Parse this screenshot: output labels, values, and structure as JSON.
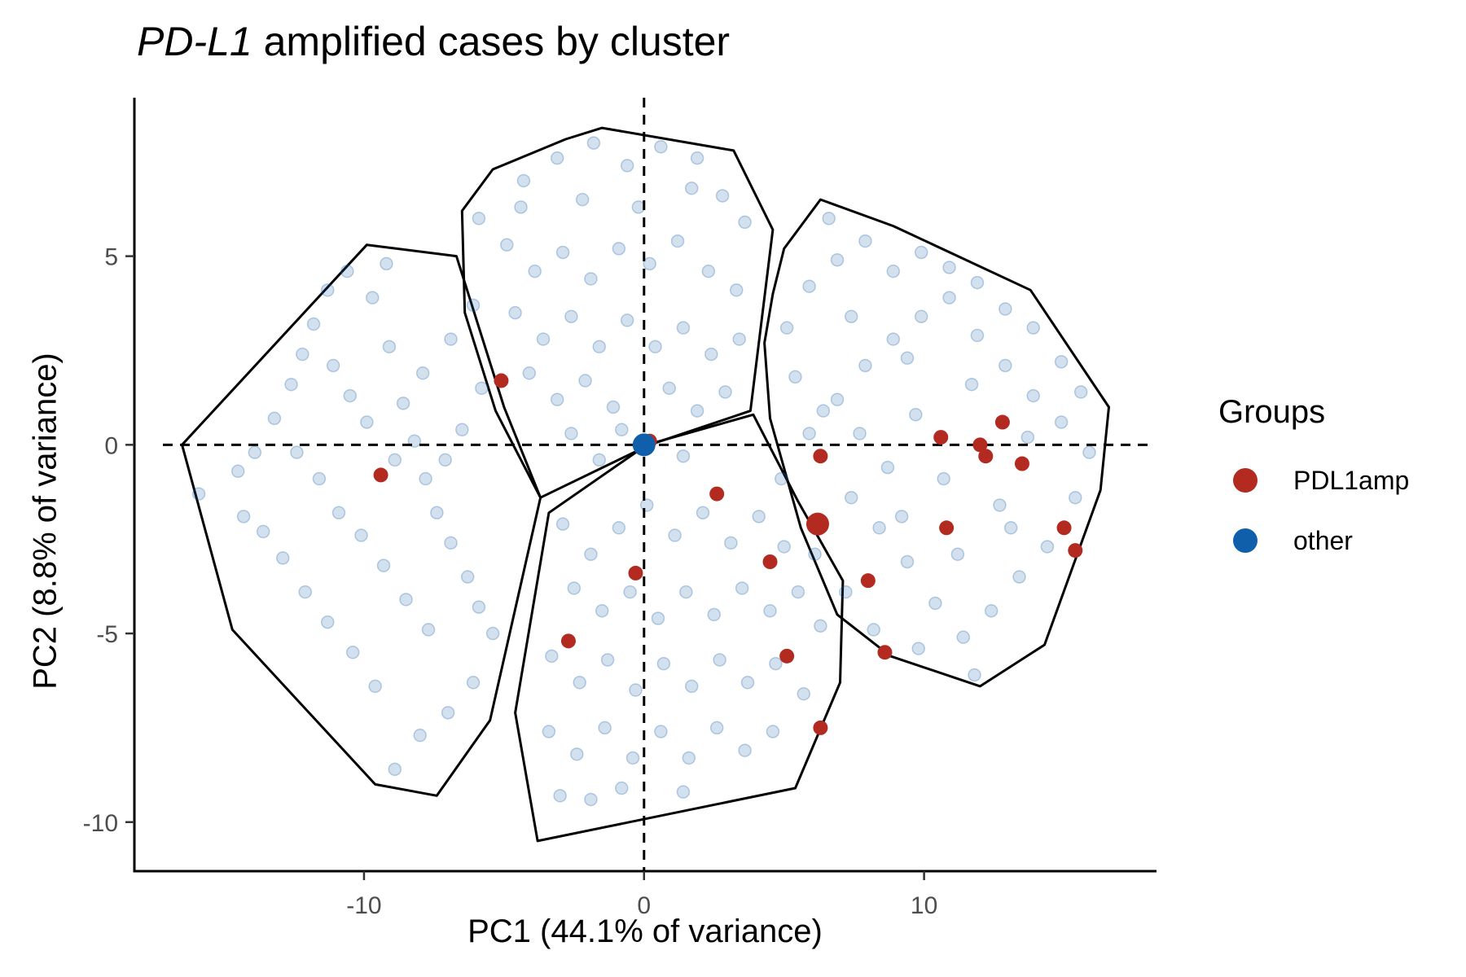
{
  "title": {
    "italic": "PD-L1",
    "rest": " amplified cases by cluster"
  },
  "chart_data": {
    "type": "scatter",
    "title": "PD-L1 amplified cases by cluster",
    "xlabel": "PC1 (44.1% of variance)",
    "ylabel": "PC2 (8.8% of variance)",
    "xlim": [
      -18.2,
      18.3
    ],
    "ylim": [
      -11.3,
      9.2
    ],
    "xticks": [
      -10,
      0,
      10
    ],
    "xtick_labels": [
      "-10",
      "0",
      "10"
    ],
    "yticks": [
      -10,
      -5,
      0,
      5
    ],
    "ytick_labels": [
      "-10",
      "-5",
      "0",
      "5"
    ],
    "reference_lines": {
      "vertical_x": 0,
      "horizontal_y": 0,
      "style": "dashed"
    },
    "grid": false,
    "legend": {
      "title": "Groups",
      "placement": "right",
      "entries": [
        {
          "label": "PDL1amp",
          "color": "#B22A20"
        },
        {
          "label": "other",
          "color": "#0F5FAA"
        }
      ]
    },
    "cluster_hulls": [
      [
        [
          -16.5,
          0.0
        ],
        [
          -9.9,
          5.3
        ],
        [
          -6.7,
          5.0
        ],
        [
          -5.0,
          1.0
        ],
        [
          -3.7,
          -1.4
        ],
        [
          -5.5,
          -7.3
        ],
        [
          -7.4,
          -9.3
        ],
        [
          -9.6,
          -9.0
        ],
        [
          -14.7,
          -4.9
        ]
      ],
      [
        [
          -6.5,
          6.2
        ],
        [
          -5.4,
          7.3
        ],
        [
          -2.8,
          8.1
        ],
        [
          -1.5,
          8.4
        ],
        [
          3.2,
          7.8
        ],
        [
          4.6,
          5.7
        ],
        [
          3.8,
          0.9
        ],
        [
          0.2,
          0.0
        ],
        [
          -3.7,
          -1.4
        ],
        [
          -5.3,
          0.9
        ],
        [
          -6.4,
          3.5
        ]
      ],
      [
        [
          -3.4,
          -1.8
        ],
        [
          0.1,
          0.0
        ],
        [
          3.9,
          0.8
        ],
        [
          5.5,
          -1.5
        ],
        [
          7.1,
          -3.6
        ],
        [
          7.0,
          -6.3
        ],
        [
          5.4,
          -9.1
        ],
        [
          -3.8,
          -10.5
        ],
        [
          -4.6,
          -7.1
        ]
      ],
      [
        [
          6.3,
          6.5
        ],
        [
          8.9,
          5.8
        ],
        [
          13.8,
          4.1
        ],
        [
          16.6,
          1.0
        ],
        [
          16.3,
          -1.2
        ],
        [
          14.3,
          -5.3
        ],
        [
          12.0,
          -6.4
        ],
        [
          8.8,
          -5.6
        ],
        [
          6.9,
          -4.5
        ],
        [
          5.6,
          -2.2
        ],
        [
          4.5,
          0.7
        ],
        [
          4.3,
          2.7
        ],
        [
          4.6,
          4.0
        ],
        [
          5.0,
          5.2
        ]
      ]
    ],
    "series": [
      {
        "name": "PDL1amp",
        "color": "#B22A20",
        "points": [
          [
            -5.1,
            1.7
          ],
          [
            -9.4,
            -0.8
          ],
          [
            0.2,
            0.1
          ],
          [
            2.6,
            -1.3
          ],
          [
            6.3,
            -0.3
          ],
          [
            6.2,
            -2.1
          ],
          [
            4.5,
            -3.1
          ],
          [
            8.0,
            -3.6
          ],
          [
            8.6,
            -5.5
          ],
          [
            5.1,
            -5.6
          ],
          [
            6.3,
            -7.5
          ],
          [
            -0.3,
            -3.4
          ],
          [
            -2.7,
            -5.2
          ],
          [
            10.6,
            0.2
          ],
          [
            12.8,
            0.6
          ],
          [
            12.0,
            0.0
          ],
          [
            12.2,
            -0.3
          ],
          [
            13.5,
            -0.5
          ],
          [
            10.8,
            -2.2
          ],
          [
            15.0,
            -2.2
          ],
          [
            15.4,
            -2.8
          ]
        ]
      },
      {
        "name": "other",
        "color": "#0F5FAA",
        "points": [
          [
            0.0,
            0.0
          ]
        ]
      }
    ],
    "background_points": {
      "note": "",
      "points": [
        [
          -15.9,
          -1.3
        ],
        [
          -14.5,
          -0.7
        ],
        [
          -13.9,
          -0.2
        ],
        [
          -13.2,
          0.7
        ],
        [
          -12.6,
          1.6
        ],
        [
          -12.2,
          2.4
        ],
        [
          -11.8,
          3.2
        ],
        [
          -11.3,
          4.1
        ],
        [
          -10.6,
          4.6
        ],
        [
          -9.7,
          3.9
        ],
        [
          -9.1,
          2.6
        ],
        [
          -8.6,
          1.1
        ],
        [
          -8.2,
          0.1
        ],
        [
          -7.8,
          -0.9
        ],
        [
          -7.4,
          -1.8
        ],
        [
          -6.9,
          -2.6
        ],
        [
          -6.3,
          -3.5
        ],
        [
          -5.9,
          -4.3
        ],
        [
          -5.4,
          -5.0
        ],
        [
          -6.1,
          -6.3
        ],
        [
          -7.0,
          -7.1
        ],
        [
          -8.0,
          -7.7
        ],
        [
          -8.9,
          -8.6
        ],
        [
          -9.6,
          -6.4
        ],
        [
          -10.4,
          -5.5
        ],
        [
          -11.3,
          -4.7
        ],
        [
          -12.1,
          -3.9
        ],
        [
          -12.9,
          -3.0
        ],
        [
          -13.6,
          -2.3
        ],
        [
          -14.3,
          -1.9
        ],
        [
          -11.6,
          -0.9
        ],
        [
          -10.9,
          -1.8
        ],
        [
          -10.1,
          -2.4
        ],
        [
          -9.3,
          -3.2
        ],
        [
          -8.5,
          -4.1
        ],
        [
          -7.7,
          -4.9
        ],
        [
          -10.5,
          1.3
        ],
        [
          -9.9,
          0.6
        ],
        [
          -8.9,
          -0.4
        ],
        [
          -7.9,
          1.9
        ],
        [
          -6.9,
          2.8
        ],
        [
          -6.1,
          3.7
        ],
        [
          -5.8,
          1.5
        ],
        [
          -6.5,
          0.4
        ],
        [
          -7.1,
          -0.4
        ],
        [
          -12.4,
          -0.2
        ],
        [
          -11.1,
          2.1
        ],
        [
          -9.2,
          4.8
        ],
        [
          -5.9,
          6.0
        ],
        [
          -4.3,
          7.0
        ],
        [
          -3.1,
          7.6
        ],
        [
          -1.8,
          8.0
        ],
        [
          -0.6,
          7.4
        ],
        [
          0.6,
          7.9
        ],
        [
          1.9,
          7.6
        ],
        [
          2.8,
          6.6
        ],
        [
          3.6,
          5.9
        ],
        [
          -4.9,
          5.3
        ],
        [
          -3.9,
          4.6
        ],
        [
          -2.9,
          5.1
        ],
        [
          -1.9,
          4.4
        ],
        [
          -0.9,
          5.2
        ],
        [
          0.2,
          4.8
        ],
        [
          1.2,
          5.4
        ],
        [
          2.3,
          4.6
        ],
        [
          3.3,
          4.1
        ],
        [
          -4.6,
          3.5
        ],
        [
          -3.6,
          2.8
        ],
        [
          -2.6,
          3.4
        ],
        [
          -1.6,
          2.6
        ],
        [
          -0.6,
          3.3
        ],
        [
          0.4,
          2.6
        ],
        [
          1.4,
          3.1
        ],
        [
          2.4,
          2.4
        ],
        [
          3.4,
          2.8
        ],
        [
          -4.1,
          1.9
        ],
        [
          -3.1,
          1.2
        ],
        [
          -2.1,
          1.7
        ],
        [
          -1.1,
          1.0
        ],
        [
          0.9,
          1.5
        ],
        [
          1.9,
          0.9
        ],
        [
          2.9,
          1.4
        ],
        [
          -2.6,
          0.3
        ],
        [
          -1.6,
          -0.4
        ],
        [
          -0.8,
          0.4
        ],
        [
          1.4,
          -0.3
        ],
        [
          -4.4,
          6.3
        ],
        [
          -2.2,
          6.5
        ],
        [
          -0.2,
          6.3
        ],
        [
          1.7,
          6.8
        ],
        [
          -2.9,
          -2.1
        ],
        [
          -1.9,
          -2.9
        ],
        [
          -0.9,
          -2.2
        ],
        [
          0.1,
          -1.6
        ],
        [
          1.1,
          -2.4
        ],
        [
          2.1,
          -1.8
        ],
        [
          3.1,
          -2.6
        ],
        [
          4.1,
          -1.9
        ],
        [
          5.0,
          -2.7
        ],
        [
          -2.5,
          -3.8
        ],
        [
          -1.5,
          -4.4
        ],
        [
          -0.5,
          -3.9
        ],
        [
          0.5,
          -4.6
        ],
        [
          1.5,
          -3.9
        ],
        [
          2.5,
          -4.5
        ],
        [
          3.5,
          -3.8
        ],
        [
          4.5,
          -4.4
        ],
        [
          5.5,
          -3.9
        ],
        [
          6.3,
          -4.8
        ],
        [
          -3.3,
          -5.6
        ],
        [
          -2.3,
          -6.3
        ],
        [
          -1.3,
          -5.7
        ],
        [
          -0.3,
          -6.5
        ],
        [
          0.7,
          -5.8
        ],
        [
          1.7,
          -6.4
        ],
        [
          2.7,
          -5.7
        ],
        [
          3.7,
          -6.3
        ],
        [
          4.7,
          -5.8
        ],
        [
          5.7,
          -6.6
        ],
        [
          -3.4,
          -7.6
        ],
        [
          -2.4,
          -8.2
        ],
        [
          -1.4,
          -7.5
        ],
        [
          -0.4,
          -8.3
        ],
        [
          0.6,
          -7.6
        ],
        [
          1.6,
          -8.3
        ],
        [
          2.6,
          -7.5
        ],
        [
          3.6,
          -8.1
        ],
        [
          4.6,
          -7.6
        ],
        [
          -3.0,
          -9.3
        ],
        [
          -1.9,
          -9.4
        ],
        [
          -0.8,
          -9.1
        ],
        [
          1.4,
          -9.2
        ],
        [
          4.9,
          -0.9
        ],
        [
          5.9,
          0.3
        ],
        [
          6.9,
          1.2
        ],
        [
          7.9,
          2.1
        ],
        [
          8.9,
          2.8
        ],
        [
          9.9,
          3.4
        ],
        [
          10.9,
          3.9
        ],
        [
          11.9,
          2.9
        ],
        [
          12.9,
          2.1
        ],
        [
          13.9,
          1.3
        ],
        [
          14.9,
          0.6
        ],
        [
          15.9,
          -0.2
        ],
        [
          15.4,
          -1.4
        ],
        [
          14.4,
          -2.7
        ],
        [
          13.4,
          -3.5
        ],
        [
          12.4,
          -4.4
        ],
        [
          11.4,
          -5.1
        ],
        [
          10.4,
          -4.2
        ],
        [
          9.4,
          -3.1
        ],
        [
          8.4,
          -2.2
        ],
        [
          7.4,
          -1.4
        ],
        [
          6.4,
          0.9
        ],
        [
          5.4,
          1.8
        ],
        [
          5.1,
          3.1
        ],
        [
          5.9,
          4.2
        ],
        [
          6.9,
          4.9
        ],
        [
          7.9,
          5.4
        ],
        [
          8.9,
          4.6
        ],
        [
          9.9,
          5.1
        ],
        [
          10.9,
          4.7
        ],
        [
          11.9,
          4.3
        ],
        [
          12.9,
          3.6
        ],
        [
          13.9,
          3.1
        ],
        [
          14.9,
          2.2
        ],
        [
          15.6,
          1.4
        ],
        [
          7.7,
          0.3
        ],
        [
          8.7,
          -0.6
        ],
        [
          9.7,
          0.8
        ],
        [
          10.7,
          -0.9
        ],
        [
          11.7,
          1.6
        ],
        [
          12.7,
          -1.6
        ],
        [
          13.7,
          0.2
        ],
        [
          9.2,
          -1.9
        ],
        [
          11.2,
          -2.9
        ],
        [
          13.1,
          -2.2
        ],
        [
          6.6,
          6.0
        ],
        [
          7.4,
          3.4
        ],
        [
          9.4,
          2.3
        ],
        [
          6.1,
          -2.9
        ],
        [
          7.2,
          -3.9
        ],
        [
          8.2,
          -4.9
        ],
        [
          9.8,
          -5.4
        ],
        [
          11.8,
          -6.1
        ]
      ]
    }
  }
}
